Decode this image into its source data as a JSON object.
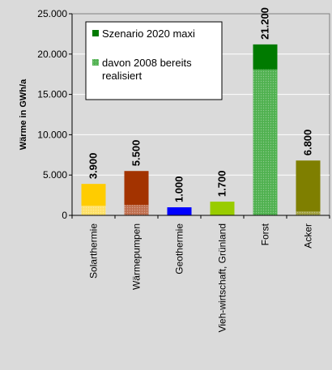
{
  "chart_data": {
    "type": "bar",
    "ylabel": "Wärme in GWh/a",
    "ylim": [
      0,
      25000
    ],
    "yticks": [
      {
        "value": 0,
        "label": "0"
      },
      {
        "value": 5000,
        "label": "5.000"
      },
      {
        "value": 10000,
        "label": "10.000"
      },
      {
        "value": 15000,
        "label": "15.000"
      },
      {
        "value": 20000,
        "label": "20.000"
      },
      {
        "value": 25000,
        "label": "25.000"
      }
    ],
    "grid": true,
    "legend_position": "top-left",
    "legend": [
      {
        "label": "Szenario 2020 maxi",
        "color": "#007a00"
      },
      {
        "label": "davon 2008 bereits realisiert",
        "color": "#4fb14f"
      }
    ],
    "categories": [
      "Solarthermie",
      "Wärmepumpen",
      "Geothermie",
      "Vieh-wirtschaft, Grünland",
      "Forst",
      "Acker"
    ],
    "series": [
      {
        "name": "Szenario 2020 maxi",
        "values": [
          3900,
          5500,
          1000,
          1700,
          21200,
          6800
        ]
      },
      {
        "name": "davon 2008 bereits realisiert",
        "values": [
          1200,
          1300,
          0,
          0,
          18100,
          500
        ]
      }
    ],
    "data_labels": [
      "3.900",
      "5.500",
      "1.000",
      "1.700",
      "21.200",
      "6.800"
    ],
    "colors": {
      "main": [
        "#ffcc00",
        "#a33300",
        "#0000ff",
        "#99cc00",
        "#007a00",
        "#7f7f00"
      ],
      "realized": [
        "#ffe066",
        "#c07050",
        "#0000ff",
        "#99cc00",
        "#4fb14f",
        "#a0a040"
      ]
    }
  }
}
